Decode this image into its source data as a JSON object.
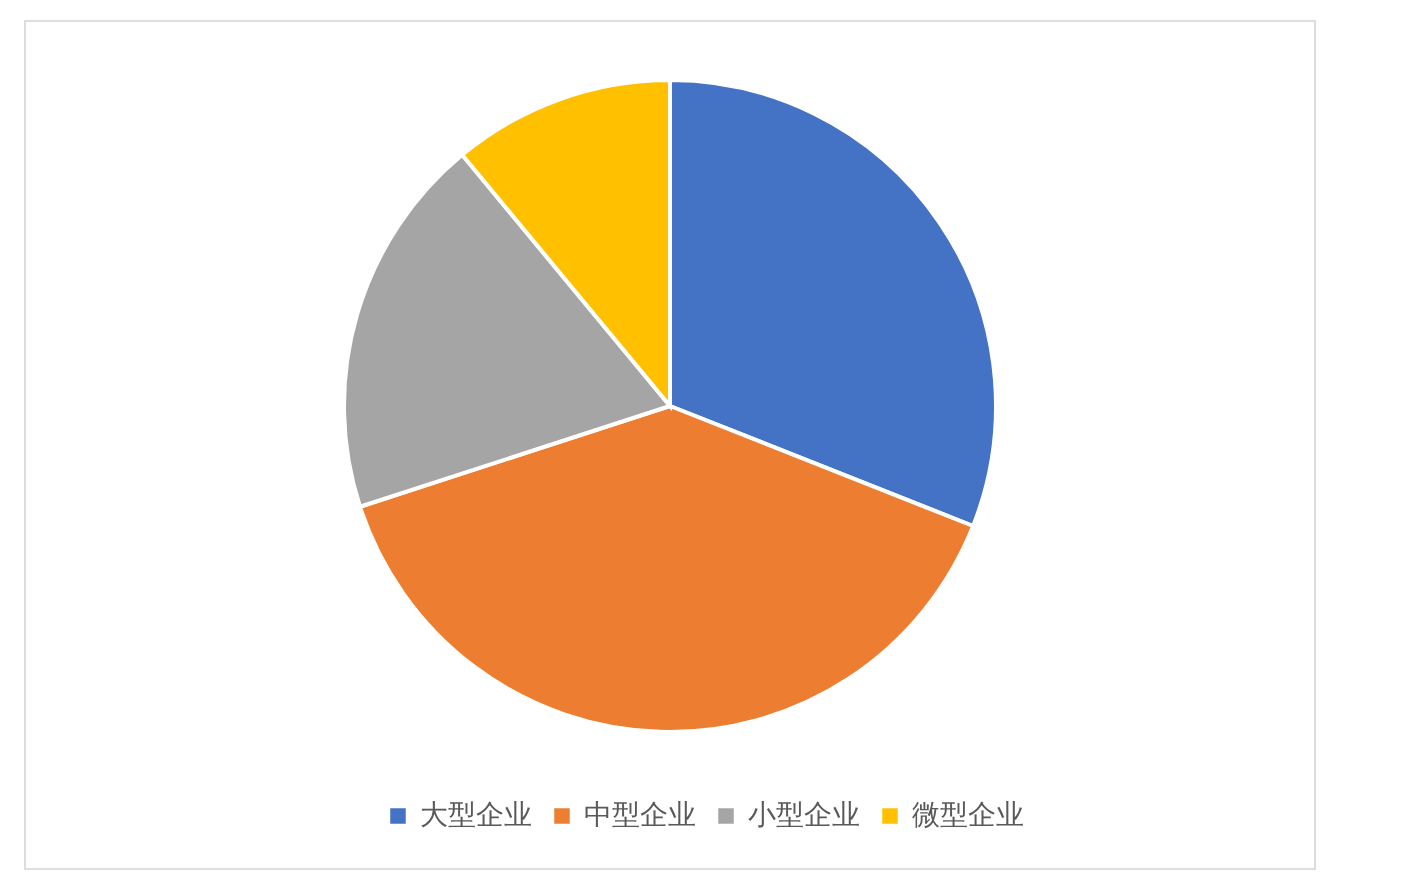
{
  "chart_data": {
    "type": "pie",
    "categories": [
      "大型企业",
      "中型企业",
      "小型企业",
      "微型企业"
    ],
    "values": [
      31,
      39,
      19,
      11
    ],
    "colors": [
      "#4472c4",
      "#ed7d31",
      "#a5a5a5",
      "#ffc000"
    ],
    "legend": "bottom"
  }
}
